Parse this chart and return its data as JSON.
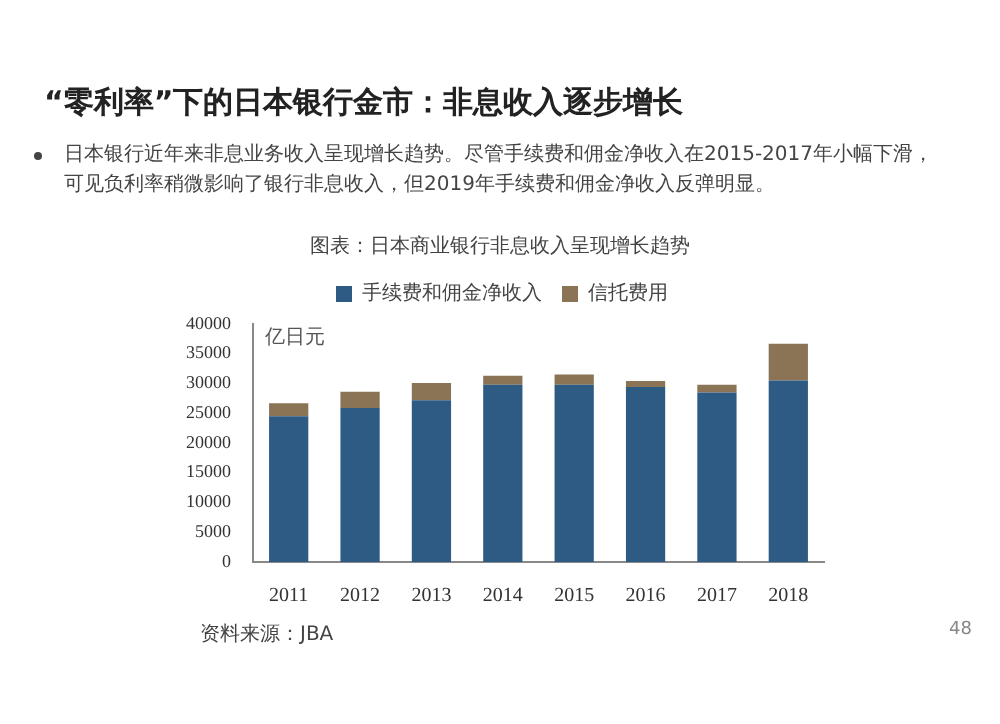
{
  "chart_data": {
    "type": "bar",
    "title": "“零利率”下的日本银行金市：非息收入逐步增长",
    "subtitle": "图表：日本商业银行非息收入呈现增长趋势",
    "ylabel": "亿日元",
    "annotations": [
      "日本银行近年来非息业务收入呈现增长趋势。尽管手续费和佣金净收入在2015-2017年小幅下滑，可见负利率稍微影响了银行非息收入，但2019年手续费和佣金净收入反弹明显。",
      "资料来源：JBA",
      "48"
    ],
    "categories": [
      "2011",
      "2012",
      "2013",
      "2014",
      "2015",
      "2016",
      "2017",
      "2018"
    ],
    "series": [
      {
        "name": "手续费和佣金净收入",
        "color": "#2e5b84",
        "values": [
          24500,
          25900,
          27200,
          29800,
          29800,
          29400,
          28500,
          30500
        ]
      },
      {
        "name": "信托费用",
        "color": "#8b7355",
        "values": [
          2200,
          2700,
          2900,
          1500,
          1700,
          1000,
          1300,
          6200
        ]
      }
    ],
    "stacked": true,
    "ylim": [
      0,
      40000
    ],
    "yticks": [
      0,
      5000,
      10000,
      15000,
      20000,
      25000,
      30000,
      35000,
      40000
    ],
    "grid": false,
    "legend": "top"
  }
}
